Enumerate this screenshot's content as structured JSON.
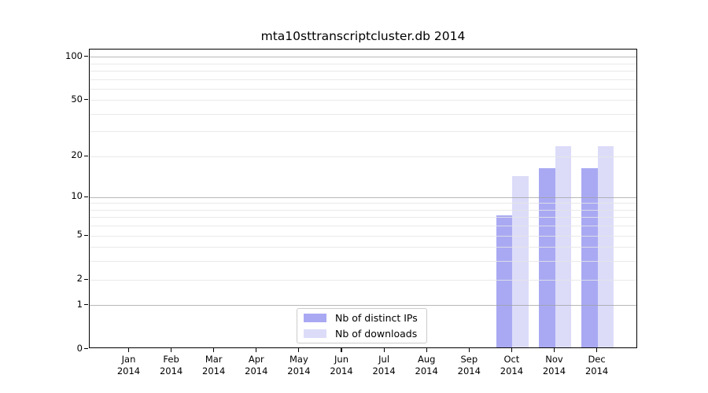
{
  "chart_data": {
    "type": "bar",
    "title": "mta10sttranscriptcluster.db 2014",
    "categories": [
      "Jan 2014",
      "Feb 2014",
      "Mar 2014",
      "Apr 2014",
      "May 2014",
      "Jun 2014",
      "Jul 2014",
      "Aug 2014",
      "Sep 2014",
      "Oct 2014",
      "Nov 2014",
      "Dec 2014"
    ],
    "series": [
      {
        "name": "Nb of distinct IPs",
        "color": "#a9a9f3",
        "values": [
          0,
          0,
          0,
          0,
          0,
          0,
          0,
          0,
          0,
          7,
          16,
          16
        ]
      },
      {
        "name": "Nb of downloads",
        "color": "#dcdcf9",
        "values": [
          0,
          0,
          0,
          0,
          0,
          0,
          0,
          0,
          0,
          14,
          23,
          23
        ]
      }
    ],
    "xlabel": "",
    "ylabel": "",
    "yscale": "log1p",
    "ylim": [
      0,
      112
    ],
    "yticks": [
      0,
      1,
      2,
      5,
      10,
      20,
      50,
      100
    ],
    "gridlines": {
      "major": [
        1,
        10,
        100
      ],
      "minor": [
        2,
        3,
        4,
        5,
        6,
        7,
        8,
        9,
        20,
        30,
        40,
        50,
        60,
        70,
        80,
        90
      ]
    },
    "grid": "on",
    "legend_position": "lower center"
  },
  "colors": {
    "axis": "#000000",
    "background": "#ffffff",
    "major_grid": "#a6a6a6",
    "minor_grid": "#e5e5e5",
    "legend_border": "#cccccc"
  }
}
